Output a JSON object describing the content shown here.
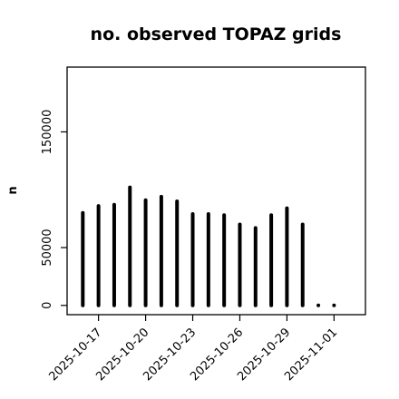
{
  "chart_data": {
    "type": "bar",
    "title": "no. observed TOPAZ grids",
    "xlabel": "",
    "ylabel": "n",
    "ylim": [
      -8000,
      206000
    ],
    "xlim": [
      "2025-10-15",
      "2025-11-03"
    ],
    "yticks": [
      {
        "value": 0,
        "label": "0"
      },
      {
        "value": 50000,
        "label": "50000"
      },
      {
        "value": 150000,
        "label": "150000"
      }
    ],
    "xticks": [
      {
        "date": "2025-10-17",
        "label": "2025-10-17",
        "color": "#000000"
      },
      {
        "date": "2025-10-20",
        "label": "2025-10-20",
        "color": "#000000"
      },
      {
        "date": "2025-10-23",
        "label": "2025-10-23",
        "color": "#228B22"
      },
      {
        "date": "2025-10-26",
        "label": "2025-10-26",
        "color": "#000000"
      },
      {
        "date": "2025-10-29",
        "label": "2025-10-29",
        "color": "#000000"
      },
      {
        "date": "2025-11-01",
        "label": "2025-11-01",
        "color": "#000000"
      }
    ],
    "grid": false,
    "legend": "none",
    "bar_color": "#000000",
    "series": [
      {
        "x": [
          "2025-10-16",
          "2025-10-17",
          "2025-10-18",
          "2025-10-19",
          "2025-10-20",
          "2025-10-21",
          "2025-10-22",
          "2025-10-23",
          "2025-10-24",
          "2025-10-25",
          "2025-10-26",
          "2025-10-27",
          "2025-10-28",
          "2025-10-29",
          "2025-10-30",
          "2025-10-31",
          "2025-11-01"
        ],
        "values": [
          80000,
          86000,
          87000,
          102000,
          91000,
          94000,
          90000,
          79000,
          79000,
          78000,
          70000,
          67000,
          78000,
          84000,
          70000,
          0,
          0
        ]
      }
    ]
  }
}
